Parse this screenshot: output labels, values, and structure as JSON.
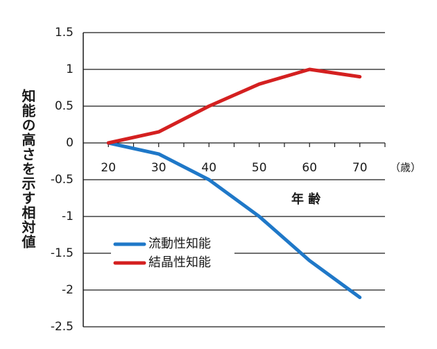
{
  "chart_data": {
    "type": "line",
    "title": "",
    "xlabel": "年 齢",
    "x_unit": "（歳）",
    "ylabel": "知能の高さを示す相対値",
    "x": [
      20,
      30,
      40,
      50,
      60,
      70
    ],
    "x_tick_labels": [
      "20",
      "30",
      "40",
      "50",
      "60",
      "70"
    ],
    "ylim": [
      -2.5,
      1.5
    ],
    "y_ticks": [
      1.5,
      1,
      0.5,
      0,
      -0.5,
      -1,
      -1.5,
      -2,
      -2.5
    ],
    "y_tick_labels": [
      "1.5",
      "1",
      "0.5",
      "0",
      "-0.5",
      "-1",
      "-1.5",
      "-2",
      "-2.5"
    ],
    "grid": "horizontal",
    "legend_position": "lower-left",
    "series": [
      {
        "name": "流動性知能",
        "color": "#1f78c8",
        "values": [
          0,
          -0.15,
          -0.5,
          -1.0,
          -1.6,
          -2.1
        ]
      },
      {
        "name": "結晶性知能",
        "color": "#d42020",
        "values": [
          0,
          0.15,
          0.5,
          0.8,
          1.0,
          0.9
        ]
      }
    ]
  }
}
